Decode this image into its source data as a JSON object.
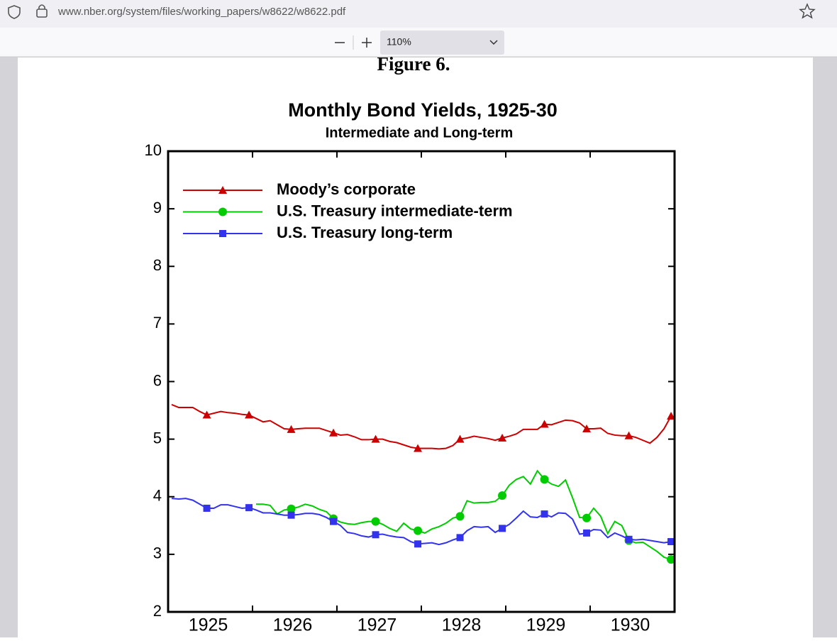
{
  "browser": {
    "url": "www.nber.org/system/files/working_papers/w8622/w8622.pdf",
    "zoom": "110%"
  },
  "figure_label": "Figure 6.",
  "chart_data": {
    "type": "line",
    "title": "Monthly Bond Yields,  1925-30",
    "subtitle": "Intermediate and Long-term",
    "categories": [
      null,
      null,
      null,
      null,
      null,
      "1925",
      null,
      null,
      null,
      null,
      null,
      null,
      null,
      null,
      null,
      null,
      null,
      "1926",
      null,
      null,
      null,
      null,
      null,
      null,
      null,
      null,
      null,
      null,
      null,
      "1927",
      null,
      null,
      null,
      null,
      null,
      null,
      null,
      null,
      null,
      null,
      null,
      "1928",
      null,
      null,
      null,
      null,
      null,
      null,
      null,
      null,
      null,
      null,
      null,
      "1929",
      null,
      null,
      null,
      null,
      null,
      null,
      null,
      null,
      null,
      null,
      null,
      "1930",
      null,
      null,
      null,
      null,
      null,
      null
    ],
    "ylim": [
      2,
      10
    ],
    "yticks": [
      2,
      3,
      4,
      5,
      6,
      7,
      8,
      9,
      10
    ],
    "legend": "top-left",
    "series": [
      {
        "name": "Moody’s corporate",
        "color": "#cc0000",
        "marker": "triangle",
        "values": [
          5.6,
          5.55,
          5.55,
          5.55,
          5.48,
          5.42,
          5.45,
          5.48,
          5.46,
          5.45,
          5.43,
          5.42,
          5.36,
          5.3,
          5.32,
          5.25,
          5.18,
          5.17,
          5.18,
          5.19,
          5.19,
          5.19,
          5.15,
          5.11,
          5.07,
          5.08,
          5.04,
          4.99,
          4.99,
          5.0,
          5.0,
          4.96,
          4.94,
          4.9,
          4.86,
          4.84,
          4.84,
          4.84,
          4.83,
          4.84,
          4.89,
          5.0,
          5.02,
          5.05,
          5.03,
          5.01,
          4.98,
          5.02,
          5.05,
          5.09,
          5.17,
          5.17,
          5.17,
          5.26,
          5.25,
          5.29,
          5.33,
          5.32,
          5.28,
          5.18,
          5.18,
          5.19,
          5.1,
          5.07,
          5.06,
          5.06,
          5.03,
          4.98,
          4.93,
          5.03,
          5.18,
          5.4
        ]
      },
      {
        "name": "U.S. Treasury intermediate-term",
        "color": "#00cc00",
        "marker": "circle",
        "values": [
          null,
          null,
          null,
          null,
          null,
          null,
          null,
          null,
          null,
          null,
          null,
          null,
          3.87,
          3.87,
          3.85,
          3.7,
          3.77,
          3.79,
          3.82,
          3.87,
          3.84,
          3.78,
          3.74,
          3.62,
          3.56,
          3.53,
          3.52,
          3.55,
          3.57,
          3.57,
          3.52,
          3.45,
          3.4,
          3.54,
          3.44,
          3.41,
          3.37,
          3.44,
          3.48,
          3.54,
          3.63,
          3.66,
          3.93,
          3.89,
          3.9,
          3.9,
          3.92,
          4.02,
          4.2,
          4.3,
          4.35,
          4.22,
          4.45,
          4.3,
          4.22,
          4.18,
          4.29,
          3.98,
          3.64,
          3.63,
          3.8,
          3.66,
          3.36,
          3.57,
          3.5,
          3.24,
          3.2,
          3.21,
          3.13,
          3.05,
          2.95,
          2.91
        ]
      },
      {
        "name": "U.S. Treasury long-term",
        "color": "#3333ee",
        "marker": "square",
        "values": [
          3.97,
          3.96,
          3.97,
          3.94,
          3.87,
          3.8,
          3.8,
          3.86,
          3.86,
          3.83,
          3.8,
          3.81,
          3.77,
          3.72,
          3.72,
          3.7,
          3.68,
          3.68,
          3.69,
          3.71,
          3.71,
          3.69,
          3.64,
          3.57,
          3.5,
          3.38,
          3.36,
          3.32,
          3.3,
          3.34,
          3.35,
          3.32,
          3.3,
          3.29,
          3.22,
          3.18,
          3.19,
          3.2,
          3.17,
          3.2,
          3.25,
          3.29,
          3.41,
          3.48,
          3.47,
          3.48,
          3.38,
          3.45,
          3.52,
          3.63,
          3.75,
          3.65,
          3.64,
          3.7,
          3.65,
          3.72,
          3.71,
          3.61,
          3.35,
          3.37,
          3.43,
          3.42,
          3.29,
          3.37,
          3.32,
          3.26,
          3.25,
          3.26,
          3.24,
          3.22,
          3.2,
          3.22
        ]
      }
    ]
  }
}
